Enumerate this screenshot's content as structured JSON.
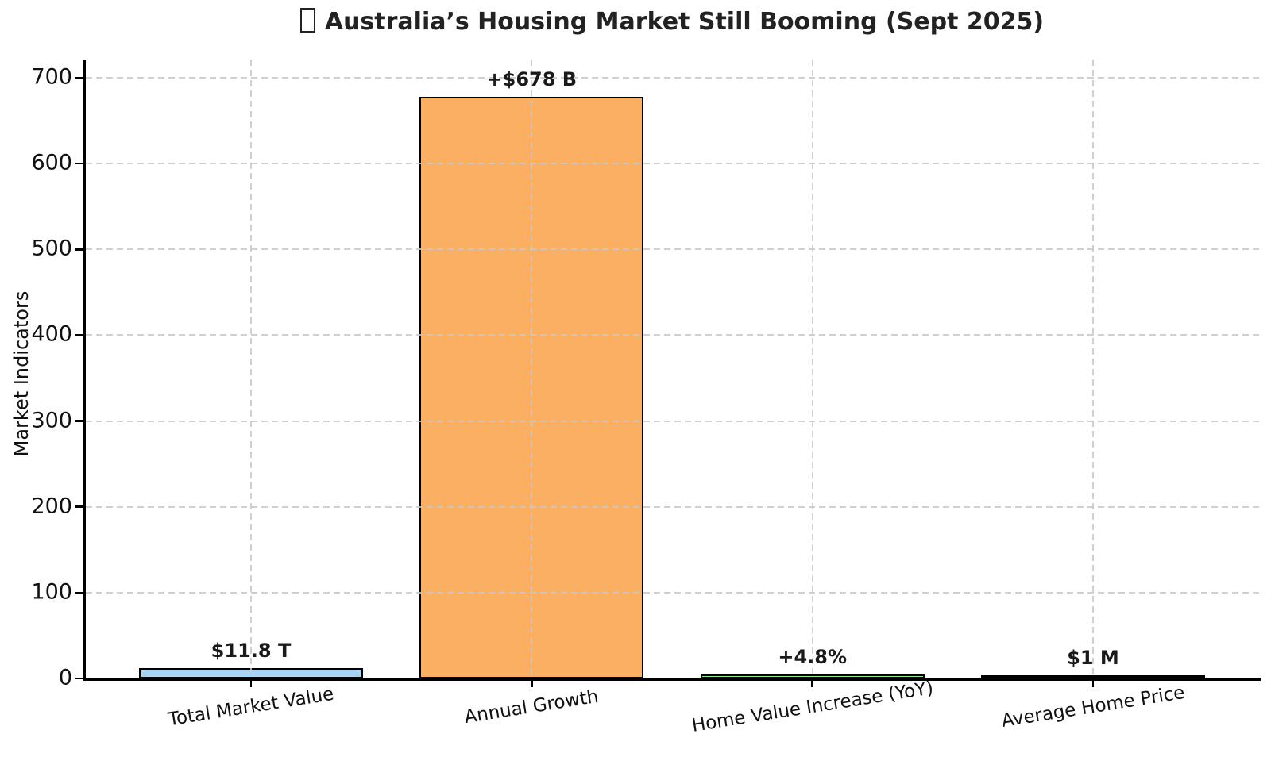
{
  "chart_data": {
    "type": "bar",
    "title_prefix_glyph": "□",
    "title_text": "Australia’s Housing Market Still Booming (Sept 2025)",
    "ylabel": "Market Indicators",
    "xlabel": "",
    "categories": [
      "Total Market Value",
      "Annual Growth",
      "Home Value Increase (YoY)",
      "Average Home Price"
    ],
    "values": [
      11.8,
      678,
      4.8,
      1
    ],
    "value_labels": [
      "$11.8 T",
      "+$678 B",
      "+4.8%",
      "$1 M"
    ],
    "bar_fill_colors": [
      "#a9d4f4",
      "#fbaf63",
      "#90ee90",
      "#000000"
    ],
    "bar_edge_color": "#000000",
    "yticks": [
      0,
      100,
      200,
      300,
      400,
      500,
      600,
      700
    ],
    "ylim": [
      0,
      721
    ],
    "grid": {
      "style": "dashed",
      "color": "#d2d2d2",
      "horizontal": true,
      "vertical": true,
      "drawn_above_bars": true
    },
    "legend": "none",
    "background": "#ffffff",
    "text_color": "#1a1a1a"
  }
}
